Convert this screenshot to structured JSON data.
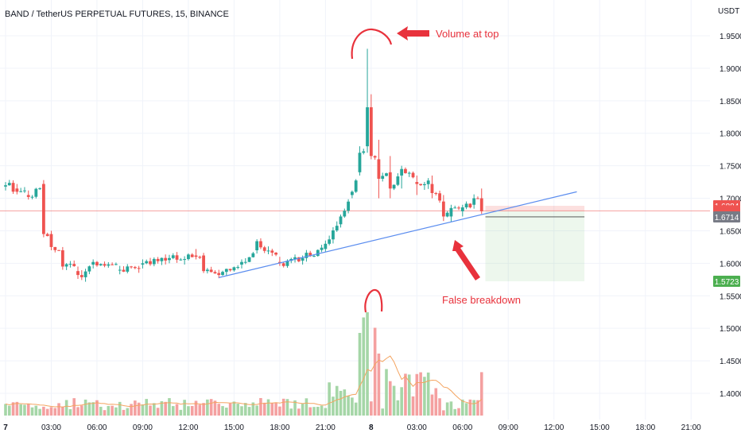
{
  "header": {
    "title": "BAND / TetherUS PERPETUAL FUTURES, 15, BINANCE",
    "currency": "USDT"
  },
  "colors": {
    "up": "#26a69a",
    "down": "#ef5350",
    "vol_up": "#a5d6a7",
    "vol_down": "#f4a0a0",
    "trendline": "#5b8def",
    "volume_ma": "#f4a460",
    "annotation": "#e8323c",
    "grid": "#f0f3fa"
  },
  "price_badges": [
    {
      "label": "1.6884",
      "value": 1.6884,
      "bg": "#ef5350"
    },
    {
      "label": "1.6807",
      "value": 1.6807,
      "bg": "#ef5350"
    },
    {
      "label": "01:38",
      "value": 1.676,
      "bg": "#ef5350"
    },
    {
      "label": "1.6714",
      "value": 1.6714,
      "bg": "#787b86"
    },
    {
      "label": "1.5723",
      "value": 1.5723,
      "bg": "#4caf50"
    }
  ],
  "annotations": {
    "top": "Volume at top",
    "bottom": "False breakdown"
  },
  "chart_data": {
    "type": "candlestick",
    "title": "BAND / TetherUS PERPETUAL FUTURES, 15, BINANCE",
    "ylabel": "USDT",
    "ylim": [
      1.37,
      1.97
    ],
    "y_ticks": [
      1.95,
      1.9,
      1.85,
      1.8,
      1.75,
      1.7,
      1.65,
      1.6,
      1.55,
      1.5,
      1.45,
      1.4
    ],
    "y_tick_labels": [
      "1.9500",
      "1.9000",
      "1.8500",
      "1.8000",
      "1.7500",
      "1.7000",
      "1.6500",
      "1.6000",
      "1.5500",
      "1.5000",
      "1.4500",
      "1.4000"
    ],
    "x_tick_labels": [
      "7",
      "03:00",
      "06:00",
      "09:00",
      "12:00",
      "15:00",
      "18:00",
      "21:00",
      "8",
      "03:00",
      "06:00",
      "09:00",
      "12:00",
      "15:00",
      "18:00",
      "21:00"
    ],
    "x_tick_bar_index": [
      0,
      12,
      24,
      36,
      48,
      60,
      72,
      84,
      96,
      108,
      120,
      132,
      144,
      156,
      168,
      180
    ],
    "bar_interval_minutes": 15,
    "x_start": "7 00:00",
    "ohlc_anchors": [
      {
        "i": 0,
        "o": 1.718,
        "h": 1.725,
        "l": 1.712,
        "c": 1.72
      },
      {
        "i": 3,
        "o": 1.715,
        "h": 1.722,
        "l": 1.706,
        "c": 1.71
      },
      {
        "i": 6,
        "o": 1.705,
        "h": 1.712,
        "l": 1.698,
        "c": 1.702
      },
      {
        "i": 10,
        "o": 1.722,
        "h": 1.728,
        "l": 1.64,
        "c": 1.645
      },
      {
        "i": 12,
        "o": 1.645,
        "h": 1.65,
        "l": 1.62,
        "c": 1.625
      },
      {
        "i": 15,
        "o": 1.62,
        "h": 1.625,
        "l": 1.59,
        "c": 1.595
      },
      {
        "i": 19,
        "o": 1.588,
        "h": 1.595,
        "l": 1.576,
        "c": 1.582
      },
      {
        "i": 23,
        "o": 1.598,
        "h": 1.606,
        "l": 1.592,
        "c": 1.602
      },
      {
        "i": 30,
        "o": 1.59,
        "h": 1.596,
        "l": 1.583,
        "c": 1.59
      },
      {
        "i": 36,
        "o": 1.598,
        "h": 1.606,
        "l": 1.592,
        "c": 1.6
      },
      {
        "i": 43,
        "o": 1.605,
        "h": 1.613,
        "l": 1.6,
        "c": 1.608
      },
      {
        "i": 50,
        "o": 1.612,
        "h": 1.622,
        "l": 1.606,
        "c": 1.61
      },
      {
        "i": 52,
        "o": 1.612,
        "h": 1.616,
        "l": 1.585,
        "c": 1.588
      },
      {
        "i": 56,
        "o": 1.585,
        "h": 1.59,
        "l": 1.577,
        "c": 1.582
      },
      {
        "i": 62,
        "o": 1.598,
        "h": 1.606,
        "l": 1.592,
        "c": 1.602
      },
      {
        "i": 66,
        "o": 1.62,
        "h": 1.637,
        "l": 1.615,
        "c": 1.634
      },
      {
        "i": 72,
        "o": 1.602,
        "h": 1.61,
        "l": 1.596,
        "c": 1.6
      },
      {
        "i": 78,
        "o": 1.604,
        "h": 1.612,
        "l": 1.598,
        "c": 1.608
      },
      {
        "i": 84,
        "o": 1.622,
        "h": 1.635,
        "l": 1.618,
        "c": 1.63
      },
      {
        "i": 88,
        "o": 1.66,
        "h": 1.675,
        "l": 1.655,
        "c": 1.672
      },
      {
        "i": 91,
        "o": 1.705,
        "h": 1.712,
        "l": 1.7,
        "c": 1.71
      },
      {
        "i": 93,
        "o": 1.74,
        "h": 1.78,
        "l": 1.735,
        "c": 1.77
      },
      {
        "i": 95,
        "o": 1.78,
        "h": 1.93,
        "l": 1.77,
        "c": 1.84
      },
      {
        "i": 96,
        "o": 1.84,
        "h": 1.86,
        "l": 1.76,
        "c": 1.765
      },
      {
        "i": 98,
        "o": 1.76,
        "h": 1.79,
        "l": 1.7,
        "c": 1.73
      },
      {
        "i": 101,
        "o": 1.74,
        "h": 1.765,
        "l": 1.7,
        "c": 1.715
      },
      {
        "i": 104,
        "o": 1.735,
        "h": 1.75,
        "l": 1.715,
        "c": 1.745
      },
      {
        "i": 108,
        "o": 1.725,
        "h": 1.735,
        "l": 1.705,
        "c": 1.722
      },
      {
        "i": 112,
        "o": 1.722,
        "h": 1.735,
        "l": 1.7,
        "c": 1.708
      },
      {
        "i": 115,
        "o": 1.695,
        "h": 1.705,
        "l": 1.665,
        "c": 1.672
      },
      {
        "i": 117,
        "o": 1.672,
        "h": 1.69,
        "l": 1.664,
        "c": 1.685
      },
      {
        "i": 120,
        "o": 1.68,
        "h": 1.69,
        "l": 1.672,
        "c": 1.686
      },
      {
        "i": 123,
        "o": 1.69,
        "h": 1.706,
        "l": 1.684,
        "c": 1.7
      },
      {
        "i": 125,
        "o": 1.7,
        "h": 1.715,
        "l": 1.676,
        "c": 1.68
      }
    ],
    "volume": {
      "ylim_relative": [
        0,
        1
      ],
      "spikes": [
        {
          "i": 93,
          "v": 0.8
        },
        {
          "i": 94,
          "v": 0.95
        },
        {
          "i": 95,
          "v": 1.0
        },
        {
          "i": 97,
          "v": 0.85
        },
        {
          "i": 98,
          "v": 0.6
        },
        {
          "i": 100,
          "v": 0.45
        },
        {
          "i": 125,
          "v": 0.42
        }
      ]
    },
    "trendline": {
      "from": {
        "i": 56,
        "y": 1.578
      },
      "to": {
        "i": 150,
        "y": 1.71
      }
    },
    "short_position": {
      "start_i": 126,
      "end_i": 152,
      "entry": 1.6807,
      "stop": 1.6884,
      "target": 1.5723
    }
  }
}
